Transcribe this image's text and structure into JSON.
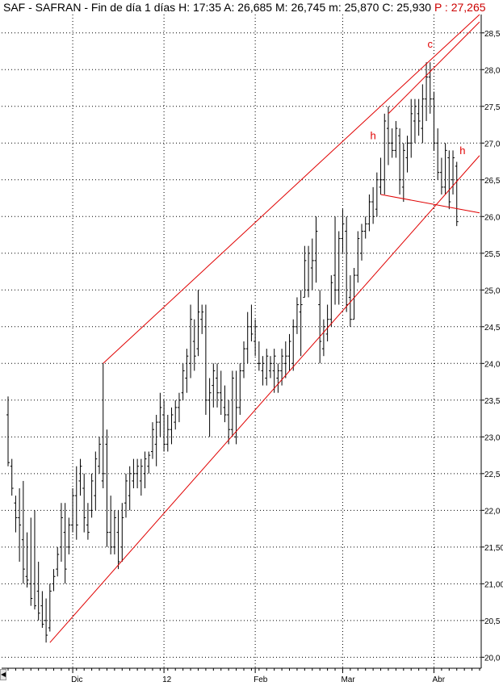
{
  "header": {
    "ticker": "SAF - SAFRAN - Fin de día 1 días",
    "h_label": "H:",
    "h_value": "17:35",
    "a_label": "A:",
    "a_value": "26,685",
    "m_label": "M:",
    "m_value": "26,745",
    "min_label": "m:",
    "min_value": "25,870",
    "c_label": "C:",
    "c_value": "25,930",
    "p_label": "P :",
    "p_value": "27,265"
  },
  "colors": {
    "bars": "#000000",
    "trendlines": "#e00000",
    "grid": "#000000",
    "background": "#ffffff",
    "last_value": "#cc0000"
  },
  "scrollbar": {
    "left_icon": "arrow-left-icon"
  },
  "chart_data": {
    "type": "ohlc",
    "price_axis": {
      "side": "right",
      "ylim": [
        19.85,
        28.75
      ],
      "ticks": [
        20.0,
        20.5,
        21.0,
        21.5,
        22.0,
        22.5,
        23.0,
        23.5,
        24.0,
        24.5,
        25.0,
        25.5,
        26.0,
        26.5,
        27.0,
        27.5,
        28.0,
        28.5
      ],
      "tick_labels": [
        "20,0",
        "20,5",
        "21,00",
        "21,50",
        "22,0",
        "22,5",
        "23,0",
        "23,5",
        "24,0",
        "24,5",
        "25,0",
        "25,5",
        "26,0",
        "26,5",
        "27,0",
        "27,5",
        "28,0",
        "28,5"
      ]
    },
    "time_axis": {
      "range": [
        0,
        124
      ],
      "labels": [
        {
          "label": "Dic",
          "bar": 17
        },
        {
          "label": "12",
          "bar": 41
        },
        {
          "label": "Feb",
          "bar": 65
        },
        {
          "label": "Mar",
          "bar": 88
        },
        {
          "label": "Abr",
          "bar": 112
        }
      ],
      "grid_bars": [
        17,
        41,
        65,
        88,
        112
      ]
    },
    "grid": true,
    "bars": [
      [
        23.3,
        23.55,
        22.6,
        22.65
      ],
      [
        22.6,
        22.7,
        22.2,
        22.3
      ],
      [
        22.1,
        22.2,
        21.7,
        21.9
      ],
      [
        21.9,
        22.3,
        21.3,
        21.8
      ],
      [
        21.6,
        22.4,
        21.0,
        21.2
      ],
      [
        21.1,
        21.7,
        20.95,
        21.05
      ],
      [
        21.0,
        21.9,
        20.7,
        20.8
      ],
      [
        21.0,
        22.0,
        20.65,
        20.7
      ],
      [
        20.9,
        21.3,
        20.5,
        20.6
      ],
      [
        20.7,
        20.9,
        20.4,
        20.45
      ],
      [
        20.5,
        20.8,
        20.2,
        20.3
      ],
      [
        20.4,
        21.0,
        20.35,
        20.9
      ],
      [
        21.0,
        21.2,
        20.9,
        21.1
      ],
      [
        21.2,
        21.5,
        21.1,
        21.4
      ],
      [
        21.5,
        22.1,
        21.3,
        21.9
      ],
      [
        21.7,
        22.1,
        21.0,
        21.2
      ],
      [
        21.5,
        21.9,
        21.4,
        21.8
      ],
      [
        21.8,
        22.3,
        21.7,
        22.2
      ],
      [
        22.2,
        22.6,
        21.6,
        21.8
      ],
      [
        22.4,
        22.7,
        22.2,
        22.6
      ],
      [
        22.3,
        22.5,
        21.7,
        21.9
      ],
      [
        21.8,
        22.1,
        21.6,
        21.7
      ],
      [
        22.0,
        22.5,
        21.9,
        22.4
      ],
      [
        22.2,
        22.8,
        22.0,
        22.7
      ],
      [
        22.6,
        23.0,
        22.5,
        22.9
      ],
      [
        22.4,
        24.0,
        22.3,
        22.5
      ],
      [
        22.9,
        23.1,
        21.5,
        21.7
      ],
      [
        21.7,
        22.2,
        21.4,
        21.5
      ],
      [
        21.5,
        22.0,
        21.4,
        21.9
      ],
      [
        21.7,
        22.0,
        21.2,
        21.3
      ],
      [
        21.5,
        22.1,
        21.3,
        21.9
      ],
      [
        22.1,
        22.5,
        21.9,
        22.4
      ],
      [
        22.2,
        22.6,
        22.0,
        22.5
      ],
      [
        22.4,
        22.7,
        22.3,
        22.5
      ],
      [
        22.5,
        22.7,
        22.3,
        22.6
      ],
      [
        22.4,
        22.7,
        22.2,
        22.6
      ],
      [
        22.5,
        22.8,
        22.3,
        22.7
      ],
      [
        22.6,
        22.8,
        22.5,
        22.75
      ],
      [
        22.8,
        23.2,
        22.7,
        23.1
      ],
      [
        22.9,
        23.3,
        22.6,
        23.2
      ],
      [
        23.2,
        23.6,
        23.0,
        23.4
      ],
      [
        23.3,
        23.5,
        22.8,
        22.9
      ],
      [
        22.9,
        23.3,
        22.8,
        23.1
      ],
      [
        23.1,
        23.4,
        22.9,
        23.3
      ],
      [
        23.2,
        23.5,
        23.1,
        23.4
      ],
      [
        23.4,
        23.6,
        23.2,
        23.5
      ],
      [
        23.6,
        24.0,
        23.5,
        23.9
      ],
      [
        23.8,
        24.2,
        23.6,
        24.1
      ],
      [
        24.0,
        24.8,
        23.8,
        24.6
      ],
      [
        24.3,
        24.6,
        23.9,
        24.1
      ],
      [
        24.2,
        25.0,
        24.1,
        24.7
      ],
      [
        24.6,
        24.8,
        24.4,
        24.7
      ],
      [
        24.5,
        24.8,
        23.3,
        23.5
      ],
      [
        23.5,
        23.8,
        23.0,
        23.6
      ],
      [
        23.7,
        24.0,
        23.4,
        23.9
      ],
      [
        23.8,
        24.0,
        23.4,
        23.6
      ],
      [
        23.6,
        23.9,
        23.3,
        23.5
      ],
      [
        23.4,
        23.7,
        23.2,
        23.3
      ],
      [
        23.3,
        23.5,
        22.9,
        23.1
      ],
      [
        23.1,
        23.9,
        23.0,
        23.8
      ],
      [
        23.0,
        23.9,
        22.9,
        23.4
      ],
      [
        23.4,
        24.0,
        23.3,
        23.9
      ],
      [
        23.9,
        24.3,
        23.8,
        24.2
      ],
      [
        24.2,
        24.7,
        24.0,
        24.5
      ],
      [
        24.5,
        24.8,
        24.3,
        24.4
      ],
      [
        24.3,
        24.6,
        24.1,
        24.5
      ],
      [
        24.0,
        24.3,
        23.9,
        24.0
      ],
      [
        23.9,
        24.1,
        23.7,
        24.0
      ],
      [
        23.8,
        24.2,
        23.7,
        24.1
      ],
      [
        23.9,
        24.1,
        23.8,
        24.0
      ],
      [
        23.9,
        24.2,
        23.6,
        24.1
      ],
      [
        23.8,
        24.0,
        23.6,
        23.9
      ],
      [
        23.9,
        24.2,
        23.7,
        24.1
      ],
      [
        24.0,
        24.3,
        23.8,
        24.1
      ],
      [
        24.1,
        24.4,
        23.9,
        24.3
      ],
      [
        24.0,
        24.6,
        23.9,
        24.5
      ],
      [
        24.5,
        24.9,
        24.4,
        24.8
      ],
      [
        24.7,
        25.0,
        24.1,
        24.8
      ],
      [
        24.9,
        25.6,
        24.9,
        25.4
      ],
      [
        25.0,
        25.6,
        24.9,
        25.5
      ],
      [
        25.3,
        25.7,
        25.0,
        25.4
      ],
      [
        25.4,
        26.0,
        25.1,
        25.8
      ],
      [
        24.8,
        25.0,
        24.0,
        24.3
      ],
      [
        24.2,
        24.6,
        24.1,
        24.5
      ],
      [
        24.4,
        24.8,
        24.3,
        24.6
      ],
      [
        24.6,
        25.2,
        24.5,
        25.1
      ],
      [
        25.2,
        26.0,
        24.8,
        25.0
      ],
      [
        25.0,
        25.8,
        24.8,
        25.7
      ],
      [
        25.7,
        26.1,
        25.5,
        25.9
      ],
      [
        25.8,
        26.0,
        24.7,
        24.8
      ],
      [
        24.9,
        25.2,
        24.5,
        24.6
      ],
      [
        24.6,
        25.3,
        24.6,
        25.2
      ],
      [
        25.2,
        25.8,
        25.1,
        25.7
      ],
      [
        25.5,
        25.9,
        25.4,
        25.8
      ],
      [
        25.8,
        26.0,
        25.7,
        25.9
      ],
      [
        25.9,
        26.3,
        25.8,
        26.2
      ],
      [
        26.2,
        26.4,
        25.9,
        26.0
      ],
      [
        26.1,
        26.6,
        26.0,
        26.5
      ],
      [
        26.4,
        26.8,
        26.3,
        26.5
      ],
      [
        26.5,
        27.4,
        26.3,
        27.3
      ],
      [
        27.2,
        27.5,
        26.7,
        27.0
      ],
      [
        27.0,
        27.2,
        26.8,
        26.9
      ],
      [
        26.9,
        27.3,
        26.8,
        27.2
      ],
      [
        27.1,
        27.2,
        26.3,
        26.5
      ],
      [
        26.4,
        27.0,
        26.2,
        26.9
      ],
      [
        26.8,
        27.1,
        26.6,
        27.0
      ],
      [
        27.0,
        27.6,
        26.8,
        27.4
      ],
      [
        27.3,
        27.6,
        27.0,
        27.5
      ],
      [
        27.4,
        27.6,
        27.1,
        27.3
      ],
      [
        27.2,
        27.8,
        27.0,
        27.6
      ],
      [
        27.6,
        28.1,
        27.3,
        27.9
      ],
      [
        27.9,
        28.1,
        27.4,
        27.6
      ],
      [
        27.6,
        27.7,
        26.9,
        27.0
      ],
      [
        27.0,
        27.2,
        26.5,
        26.6
      ],
      [
        26.6,
        26.8,
        26.3,
        26.4
      ],
      [
        26.4,
        27.0,
        26.3,
        26.9
      ],
      [
        26.8,
        26.9,
        26.1,
        26.2
      ],
      [
        26.5,
        26.9,
        26.3,
        26.8
      ],
      [
        26.685,
        26.745,
        25.87,
        25.93
      ]
    ],
    "trendlines": [
      {
        "x1": 25,
        "y1": 24.0,
        "x2": 124,
        "y2": 28.75
      },
      {
        "x1": 100,
        "y1": 27.4,
        "x2": 124,
        "y2": 28.65
      },
      {
        "x1": 11,
        "y1": 20.2,
        "x2": 124,
        "y2": 26.83
      },
      {
        "x1": 98,
        "y1": 26.3,
        "x2": 124,
        "y2": 26.05
      }
    ],
    "annotations": [
      {
        "text": "h",
        "bar": 96,
        "price": 27.05
      },
      {
        "text": "c",
        "bar": 111,
        "price": 28.3
      },
      {
        "text": "h",
        "bar": 119.5,
        "price": 26.85
      }
    ]
  }
}
